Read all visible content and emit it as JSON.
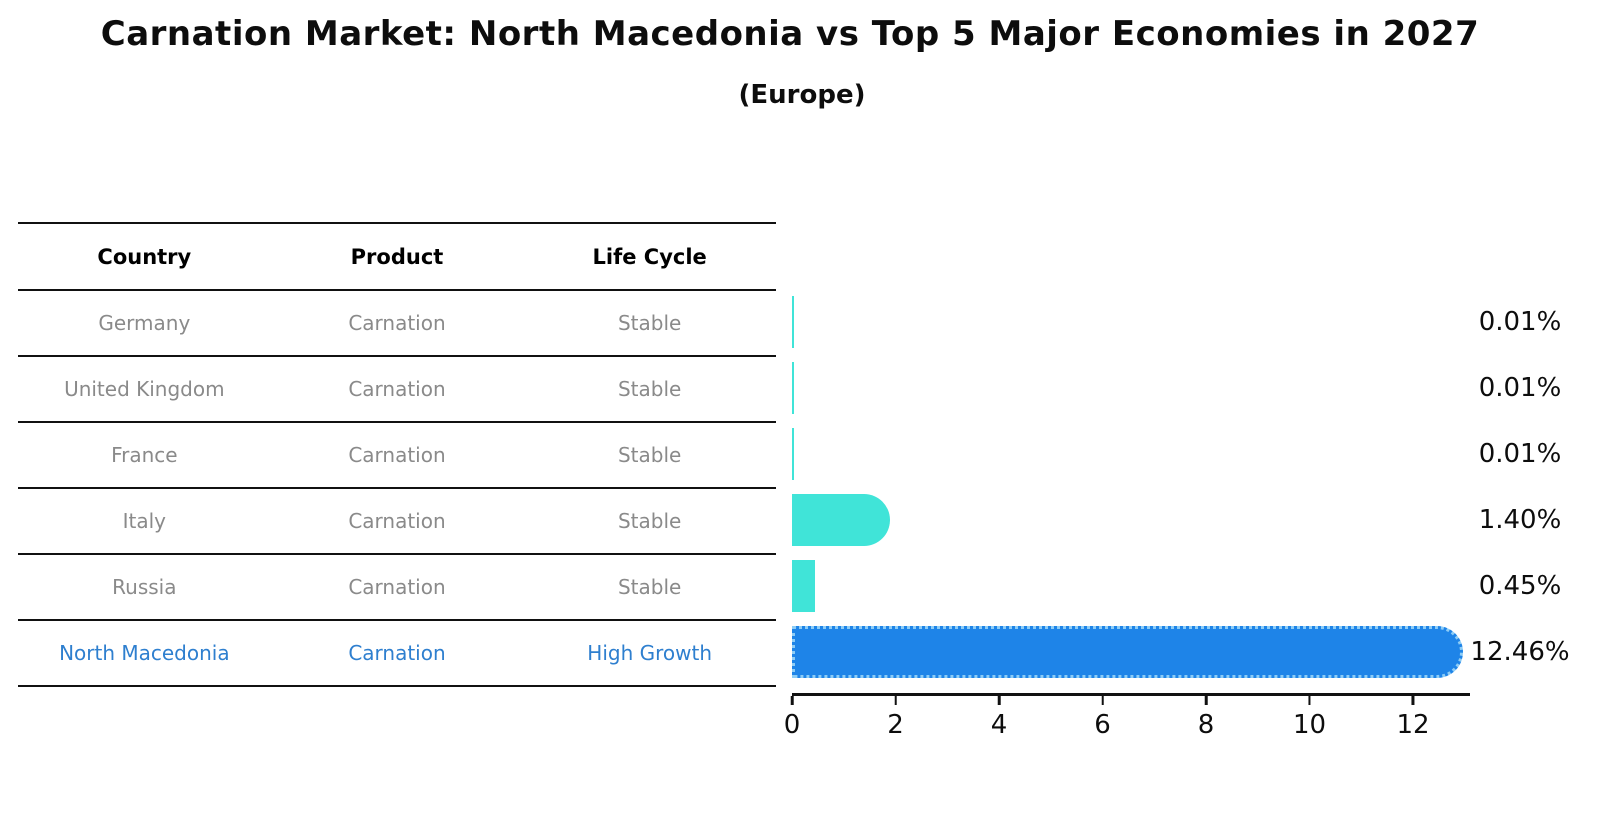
{
  "title": "Carnation Market: North Macedonia vs Top 5 Major Economies in 2027",
  "subtitle": "(Europe)",
  "table": {
    "headers": [
      "Country",
      "Product",
      "Life Cycle"
    ],
    "rows": [
      {
        "country": "Germany",
        "product": "Carnation",
        "life_cycle": "Stable",
        "highlight": false
      },
      {
        "country": "United Kingdom",
        "product": "Carnation",
        "life_cycle": "Stable",
        "highlight": false
      },
      {
        "country": "France",
        "product": "Carnation",
        "life_cycle": "Stable",
        "highlight": false
      },
      {
        "country": "Italy",
        "product": "Carnation",
        "life_cycle": "Stable",
        "highlight": false
      },
      {
        "country": "Russia",
        "product": "Carnation",
        "life_cycle": "Stable",
        "highlight": false
      },
      {
        "country": "North Macedonia",
        "product": "Carnation",
        "life_cycle": "High Growth",
        "highlight": true
      }
    ]
  },
  "chart_data": {
    "type": "bar",
    "orientation": "horizontal",
    "title": "Carnation Market: North Macedonia vs Top 5 Major Economies in 2027",
    "subtitle": "(Europe)",
    "categories": [
      "Germany",
      "United Kingdom",
      "France",
      "Italy",
      "Russia",
      "North Macedonia"
    ],
    "values": [
      0.01,
      0.01,
      0.01,
      1.4,
      0.45,
      12.46
    ],
    "value_labels": [
      "0.01%",
      "0.01%",
      "0.01%",
      "1.40%",
      "0.45%",
      "12.46%"
    ],
    "xticks": [
      0,
      2,
      4,
      6,
      8,
      10,
      12
    ],
    "xlim": [
      0,
      13.1
    ],
    "xlabel": "",
    "ylabel": "",
    "grid": false,
    "legend": false,
    "highlight_index": 5,
    "bar_color": "#40E4D8",
    "highlight_color": "#1E84E8",
    "highlight_border_color": "#8ecdf6",
    "highlight_text_color": "#2e7fcf",
    "text_color": "#8a8a8a"
  }
}
